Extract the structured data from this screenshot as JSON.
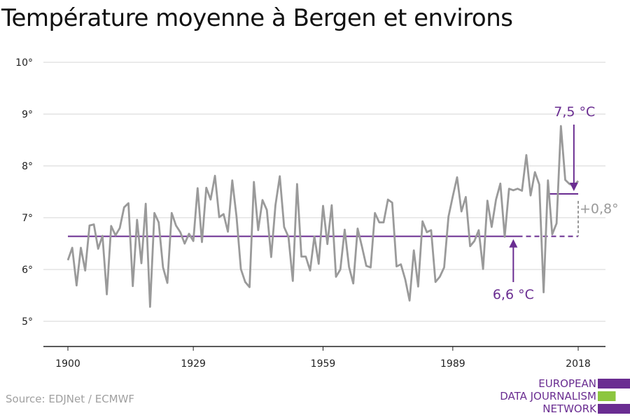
{
  "chart_data": {
    "type": "line",
    "title": "Température moyenne à Bergen et environs",
    "x_ticks": [
      "1900",
      "1929",
      "1959",
      "1989",
      "2018"
    ],
    "y_ticks": [
      "5°",
      "6°",
      "7°",
      "8°",
      "9°",
      "10°"
    ],
    "ylim": [
      5,
      10
    ],
    "xlim": [
      1900,
      2018
    ],
    "grid": "horizontal",
    "series": [
      {
        "color": "#9a9a9a",
        "x": [
          1900,
          1901,
          1902,
          1903,
          1904,
          1905,
          1906,
          1907,
          1908,
          1909,
          1910,
          1911,
          1912,
          1913,
          1914,
          1915,
          1916,
          1917,
          1918,
          1919,
          1920,
          1921,
          1922,
          1923,
          1924,
          1925,
          1926,
          1927,
          1928,
          1929,
          1930,
          1931,
          1932,
          1933,
          1934,
          1935,
          1936,
          1937,
          1938,
          1939,
          1940,
          1941,
          1942,
          1943,
          1944,
          1945,
          1946,
          1947,
          1948,
          1949,
          1950,
          1951,
          1952,
          1953,
          1954,
          1955,
          1956,
          1957,
          1958,
          1959,
          1960,
          1961,
          1962,
          1963,
          1964,
          1965,
          1966,
          1967,
          1968,
          1969,
          1970,
          1971,
          1972,
          1973,
          1974,
          1975,
          1976,
          1977,
          1978,
          1979,
          1980,
          1981,
          1982,
          1983,
          1984,
          1985,
          1986,
          1987,
          1988,
          1989,
          1990,
          1991,
          1992,
          1993,
          1994,
          1995,
          1996,
          1997,
          1998,
          1999,
          2000,
          2001,
          2002,
          2003,
          2004,
          2005,
          2006,
          2007,
          2008,
          2009,
          2010,
          2011,
          2012,
          2013,
          2014,
          2015,
          2016,
          2017,
          2018
        ],
        "values": [
          6.18,
          6.42,
          5.69,
          6.42,
          5.98,
          6.85,
          6.87,
          6.4,
          6.65,
          5.52,
          6.84,
          6.66,
          6.8,
          7.2,
          7.28,
          5.68,
          6.96,
          6.12,
          7.27,
          5.28,
          7.09,
          6.91,
          6.04,
          5.74,
          7.09,
          6.85,
          6.72,
          6.5,
          6.69,
          6.55,
          7.57,
          6.53,
          7.58,
          7.35,
          7.81,
          7.01,
          7.07,
          6.73,
          7.72,
          7.02,
          6.01,
          5.76,
          5.66,
          7.69,
          6.76,
          7.34,
          7.15,
          6.24,
          7.24,
          7.8,
          6.82,
          6.63,
          5.78,
          7.65,
          6.25,
          6.25,
          5.98,
          6.64,
          6.11,
          7.23,
          6.49,
          7.24,
          5.86,
          6.0,
          6.77,
          6.05,
          5.73,
          6.79,
          6.44,
          6.07,
          6.04,
          7.09,
          6.91,
          6.91,
          7.35,
          7.29,
          6.06,
          6.1,
          5.81,
          5.4,
          6.37,
          5.67,
          6.93,
          6.72,
          6.76,
          5.76,
          5.86,
          6.04,
          7.02,
          7.41,
          7.78,
          7.12,
          7.4,
          6.45,
          6.55,
          6.76,
          6.01,
          7.33,
          6.82,
          7.35,
          7.66,
          6.63,
          7.56,
          7.53,
          7.56,
          7.52,
          8.21,
          7.43,
          7.88,
          7.64,
          5.56,
          7.72,
          6.68,
          6.89,
          8.77,
          7.73,
          7.65,
          7.62,
          7.71
        ]
      }
    ],
    "reference_lines": [
      {
        "label": "6,6 °C",
        "value": 6.64,
        "from": 1900,
        "to": 2018,
        "style": "solid-then-dashed",
        "color": "#6a2d91"
      },
      {
        "label": "7,5 °C",
        "value": 7.46,
        "from": 2011,
        "to": 2018,
        "style": "solid",
        "color": "#6a2d91"
      }
    ],
    "difference": {
      "label": "+0,8°",
      "color": "#9a9a9a"
    },
    "colors": {
      "baseline": "#6a2d91",
      "series": "#9a9a9a",
      "grid": "#d6d6d6",
      "axis": "#222222"
    }
  },
  "source": "Source: EDJNet / ECMWF",
  "logo": {
    "lines": [
      "EUROPEAN",
      "DATA JOURNALISM",
      "NETWORK"
    ],
    "colors": {
      "primary": "#6a2d91",
      "accent": "#8cc63f"
    }
  }
}
